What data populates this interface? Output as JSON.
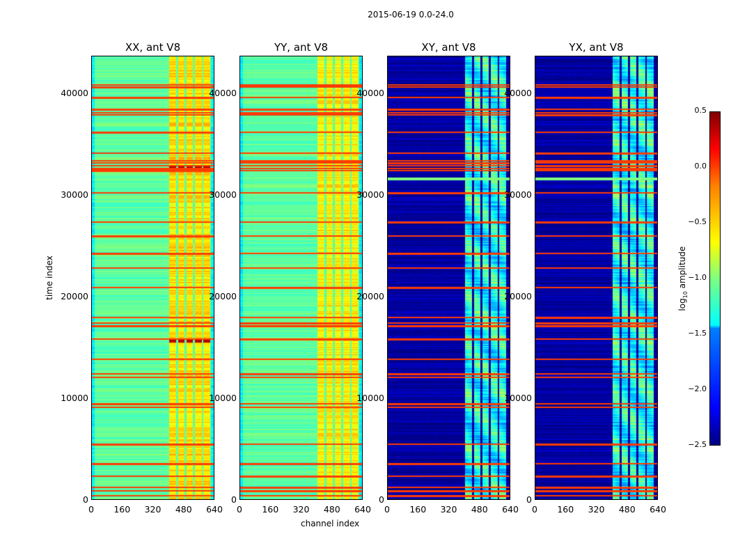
{
  "chart_data": {
    "type": "heatmap",
    "title": "2015-06-19 0.0-24.0",
    "xlabel": "channel index",
    "ylabel": "time index",
    "xlim": [
      0,
      640
    ],
    "ylim": [
      0,
      43700
    ],
    "xticks": [
      "0",
      "160",
      "320",
      "480",
      "640"
    ],
    "yticks": [
      "0",
      "10000",
      "20000",
      "30000",
      "40000"
    ],
    "colorbar": {
      "label": "log10 amplitude",
      "label_main": "log",
      "label_sub": "10",
      "label_rest": " amplitude",
      "range": [
        -2.5,
        0.5
      ],
      "ticks": [
        "0.5",
        "0.0",
        "−0.5",
        "−1.0",
        "−1.5",
        "−2.0",
        "−2.5"
      ],
      "colormap": "jet"
    },
    "panels": [
      {
        "title": "XX, ant V8",
        "base": -1.1,
        "band": -0.55,
        "kind": "auto"
      },
      {
        "title": "YY, ant V8",
        "base": -1.1,
        "band": -0.6,
        "kind": "auto"
      },
      {
        "title": "XY, ant V8",
        "base": -2.4,
        "band": -1.3,
        "kind": "cross"
      },
      {
        "title": "YX, ant V8",
        "base": -2.4,
        "band": -1.3,
        "kind": "cross"
      }
    ],
    "band_channels": [
      [
        405,
        440
      ],
      [
        450,
        485
      ],
      [
        495,
        530
      ],
      [
        540,
        575
      ],
      [
        585,
        620
      ]
    ],
    "flagged_time_indices": [
      40960,
      40750,
      39730,
      38560,
      38220,
      38010,
      36300,
      34250,
      33430,
      33290,
      33010,
      32740,
      32470,
      30280,
      27400,
      26030,
      24320,
      22880,
      20960,
      18010,
      17470,
      17190,
      15890,
      13900,
      12470,
      12120,
      9450,
      9110,
      5480,
      3560,
      2330,
      1230,
      890,
      410
    ],
    "flag_value": -0.05
  }
}
